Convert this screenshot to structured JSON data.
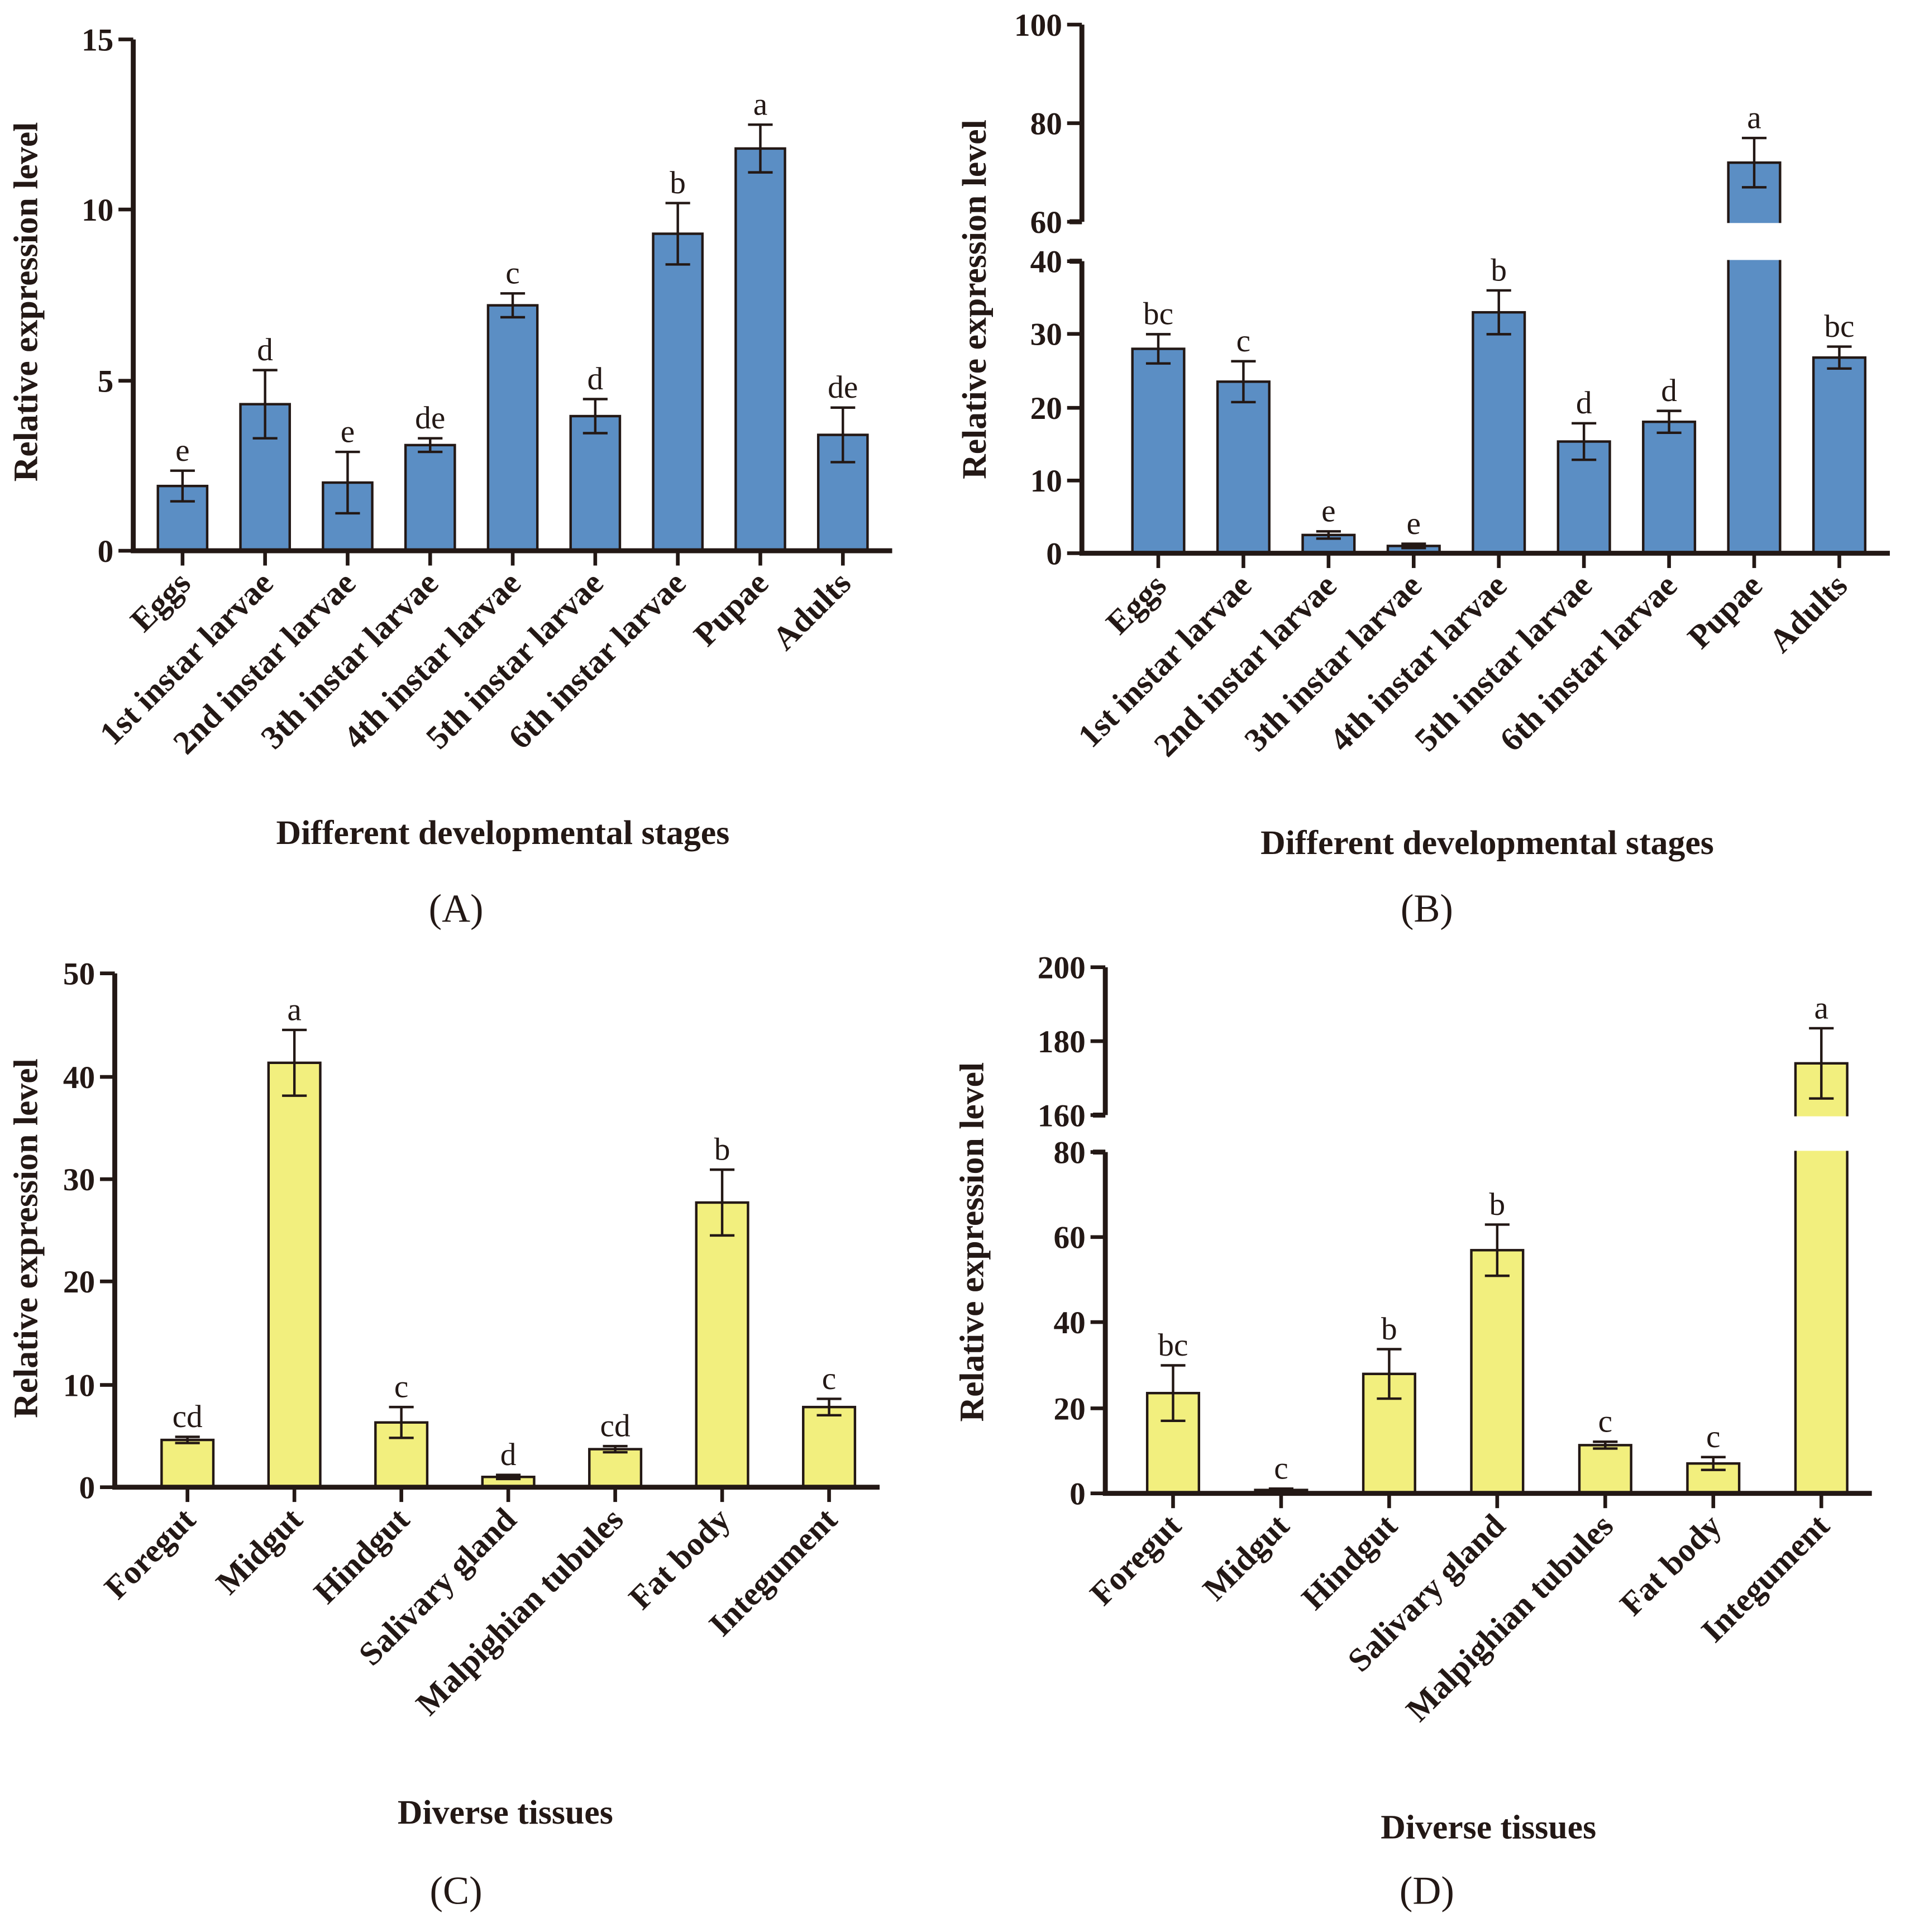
{
  "colors": {
    "blue": "#5b8ec4",
    "yellow": "#f2ef7e",
    "axis": "#231815"
  },
  "chart_data": [
    {
      "id": "A",
      "type": "bar",
      "panel_label": "(A)",
      "xlabel": "Different developmental stages",
      "ylabel": "Relative expression level",
      "categories": [
        "Eggs",
        "1st instar larvae",
        "2nd instar larvae",
        "3th instar larvae",
        "4th instar larvae",
        "5th instar larvae",
        "6th instar larvae",
        "Pupae",
        "Adults"
      ],
      "values": [
        1.9,
        4.3,
        2.0,
        3.1,
        7.2,
        3.95,
        9.3,
        11.8,
        3.4
      ],
      "errors": [
        0.45,
        1.0,
        0.9,
        0.2,
        0.35,
        0.5,
        0.9,
        0.7,
        0.8
      ],
      "letters": [
        "e",
        "d",
        "e",
        "de",
        "c",
        "d",
        "b",
        "a",
        "de"
      ],
      "ylim": [
        0,
        15
      ],
      "yticks": [
        "0",
        "5",
        "10",
        "15"
      ],
      "color": "blue"
    },
    {
      "id": "B",
      "type": "bar",
      "panel_label": "(B)",
      "xlabel": "Different developmental stages",
      "ylabel": "Relative expression level",
      "categories": [
        "Eggs",
        "1st instar larvae",
        "2nd instar larvae",
        "3th instar larvae",
        "4th instar larvae",
        "5th instar larvae",
        "6th instar larvae",
        "Pupae",
        "Adults"
      ],
      "values": [
        28,
        23.5,
        2.5,
        1.0,
        33,
        15.3,
        18,
        72,
        26.8
      ],
      "errors": [
        2,
        2.8,
        0.5,
        0.3,
        3,
        2.5,
        1.5,
        5,
        1.5
      ],
      "letters": [
        "bc",
        "c",
        "e",
        "e",
        "b",
        "d",
        "d",
        "a",
        "bc"
      ],
      "ylim": [
        0,
        100
      ],
      "axis_break": [
        40,
        60
      ],
      "yticks": [
        "0",
        "10",
        "20",
        "30",
        "40",
        "60",
        "80",
        "100"
      ],
      "color": "blue"
    },
    {
      "id": "C",
      "type": "bar",
      "panel_label": "(C)",
      "xlabel": "Diverse tissues",
      "ylabel": "Relative expression level",
      "categories": [
        "Foregut",
        "Midgut",
        "Hindgut",
        "Salivary gland",
        "Malpighian tubules",
        "Fat body",
        "Integument"
      ],
      "values": [
        4.6,
        41.3,
        6.3,
        1.0,
        3.7,
        27.7,
        7.8
      ],
      "errors": [
        0.3,
        3.2,
        1.5,
        0.2,
        0.3,
        3.2,
        0.8
      ],
      "letters": [
        "cd",
        "a",
        "c",
        "d",
        "cd",
        "b",
        "c"
      ],
      "ylim": [
        0,
        50
      ],
      "yticks": [
        "0",
        "10",
        "20",
        "30",
        "40",
        "50"
      ],
      "color": "yellow"
    },
    {
      "id": "D",
      "type": "bar",
      "panel_label": "(D)",
      "xlabel": "Diverse tissues",
      "ylabel": "Relative expression level",
      "categories": [
        "Foregut",
        "Midgut",
        "Hindgut",
        "Salivary gland",
        "Malpighian tubules",
        "Fat body",
        "Integument"
      ],
      "values": [
        23.5,
        0.8,
        28,
        57,
        11.3,
        7,
        174
      ],
      "errors": [
        6.5,
        0.3,
        5.8,
        6,
        0.8,
        1.5,
        9.5
      ],
      "letters": [
        "bc",
        "c",
        "b",
        "b",
        "c",
        "c",
        "a"
      ],
      "ylim": [
        0,
        200
      ],
      "axis_break": [
        80,
        160
      ],
      "yticks": [
        "0",
        "20",
        "40",
        "60",
        "80",
        "160",
        "180",
        "200"
      ],
      "color": "yellow"
    }
  ]
}
